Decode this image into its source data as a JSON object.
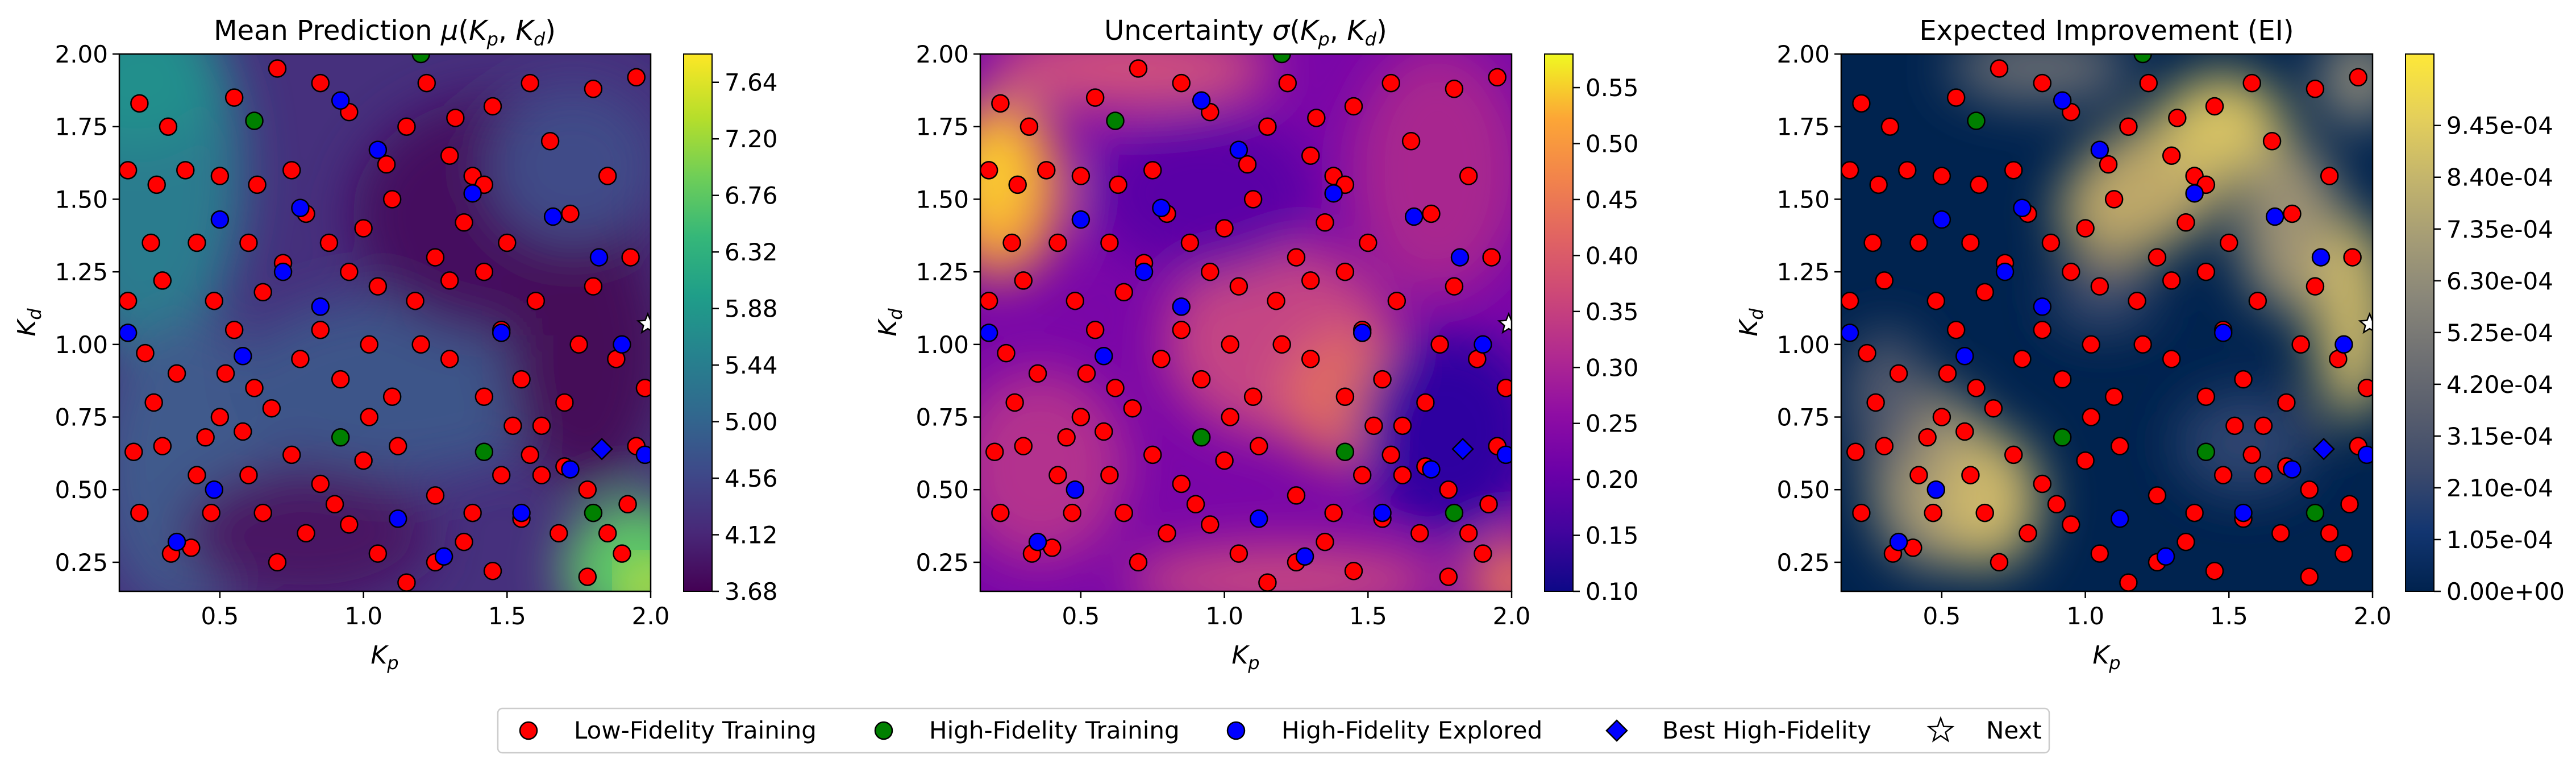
{
  "colors": {
    "low_fidelity": "#ff0000",
    "high_fidelity_training": "#008000",
    "high_fidelity_explored": "#0000ff",
    "best_high_fidelity": "#0000ff",
    "marker_edge": "#000000"
  },
  "legend": {
    "placement": "bottom-center",
    "items": [
      {
        "label": "Low-Fidelity Training",
        "marker": "circle",
        "color": "#ff0000"
      },
      {
        "label": "High-Fidelity Training",
        "marker": "circle",
        "color": "#008000"
      },
      {
        "label": "High-Fidelity Explored",
        "marker": "circle",
        "color": "#0000ff"
      },
      {
        "label": "Best High-Fidelity",
        "marker": "diamond",
        "color": "#0000ff"
      },
      {
        "label": "Next",
        "marker": "star",
        "color": "#ffffff"
      }
    ]
  },
  "chart_data": [
    {
      "type": "heatmap",
      "title": "Mean Prediction μ(K_p, K_d)",
      "title_parts": {
        "main": "Mean Prediction ",
        "mu": "μ",
        "k1": "K",
        "k1sub": "p",
        "k2": "K",
        "k2sub": "d"
      },
      "xlabel": "K_p",
      "ylabel": "K_d",
      "xlim": [
        0.15,
        2.0
      ],
      "ylim": [
        0.15,
        2.0
      ],
      "xticks": [
        0.5,
        1.0,
        1.5,
        2.0
      ],
      "xtick_labels": [
        "0.5",
        "1.0",
        "1.5",
        "2.0"
      ],
      "yticks": [
        0.25,
        0.5,
        0.75,
        1.0,
        1.25,
        1.5,
        1.75,
        2.0
      ],
      "ytick_labels": [
        "0.25",
        "0.50",
        "0.75",
        "1.00",
        "1.25",
        "1.50",
        "1.75",
        "2.00"
      ],
      "colormap": "viridis",
      "colorbar_range": [
        3.68,
        7.86
      ],
      "colorbar_ticks": [
        3.68,
        4.12,
        4.56,
        5.0,
        5.44,
        5.88,
        6.32,
        6.76,
        7.2,
        7.64
      ],
      "colorbar_tick_labels": [
        "3.68",
        "4.12",
        "4.56",
        "5.00",
        "5.44",
        "5.88",
        "6.32",
        "6.76",
        "7.20",
        "7.64"
      ]
    },
    {
      "type": "heatmap",
      "title": "Uncertainty σ(K_p, K_d)",
      "title_parts": {
        "main": "Uncertainty ",
        "mu": "σ",
        "k1": "K",
        "k1sub": "p",
        "k2": "K",
        "k2sub": "d"
      },
      "xlabel": "K_p",
      "ylabel": "K_d",
      "xlim": [
        0.15,
        2.0
      ],
      "ylim": [
        0.15,
        2.0
      ],
      "xticks": [
        0.5,
        1.0,
        1.5,
        2.0
      ],
      "xtick_labels": [
        "0.5",
        "1.0",
        "1.5",
        "2.0"
      ],
      "yticks": [
        0.25,
        0.5,
        0.75,
        1.0,
        1.25,
        1.5,
        1.75,
        2.0
      ],
      "ytick_labels": [
        "0.25",
        "0.50",
        "0.75",
        "1.00",
        "1.25",
        "1.50",
        "1.75",
        "2.00"
      ],
      "colormap": "plasma",
      "colorbar_range": [
        0.1,
        0.58
      ],
      "colorbar_ticks": [
        0.1,
        0.15,
        0.2,
        0.25,
        0.3,
        0.35,
        0.4,
        0.45,
        0.5,
        0.55
      ],
      "colorbar_tick_labels": [
        "0.10",
        "0.15",
        "0.20",
        "0.25",
        "0.30",
        "0.35",
        "0.40",
        "0.45",
        "0.50",
        "0.55"
      ]
    },
    {
      "type": "heatmap",
      "title": "Expected Improvement (EI)",
      "xlabel": "K_p",
      "ylabel": "K_d",
      "xlim": [
        0.15,
        2.0
      ],
      "ylim": [
        0.15,
        2.0
      ],
      "xticks": [
        0.5,
        1.0,
        1.5,
        2.0
      ],
      "xtick_labels": [
        "0.5",
        "1.0",
        "1.5",
        "2.0"
      ],
      "yticks": [
        0.25,
        0.5,
        0.75,
        1.0,
        1.25,
        1.5,
        1.75,
        2.0
      ],
      "ytick_labels": [
        "0.25",
        "0.50",
        "0.75",
        "1.00",
        "1.25",
        "1.50",
        "1.75",
        "2.00"
      ],
      "colormap": "cividis",
      "colorbar_range": [
        0.0,
        0.00109
      ],
      "colorbar_ticks": [
        0.0,
        0.000105,
        0.00021,
        0.000315,
        0.00042,
        0.000525,
        0.00063,
        0.000735,
        0.00084,
        0.000945
      ],
      "colorbar_tick_labels": [
        "0.00e+00",
        "1.05e-04",
        "2.10e-04",
        "3.15e-04",
        "4.20e-04",
        "5.25e-04",
        "6.30e-04",
        "7.35e-04",
        "8.40e-04",
        "9.45e-04"
      ]
    }
  ],
  "scatter_points": {
    "low_fidelity": [
      [
        0.22,
        1.83
      ],
      [
        0.26,
        1.35
      ],
      [
        0.18,
        1.15
      ],
      [
        0.24,
        0.97
      ],
      [
        0.3,
        1.22
      ],
      [
        0.2,
        0.63
      ],
      [
        0.27,
        0.8
      ],
      [
        0.35,
        0.9
      ],
      [
        0.42,
        0.55
      ],
      [
        0.33,
        0.28
      ],
      [
        0.4,
        0.3
      ],
      [
        0.47,
        0.42
      ],
      [
        0.5,
        0.75
      ],
      [
        0.55,
        1.05
      ],
      [
        0.6,
        1.35
      ],
      [
        0.63,
        1.55
      ],
      [
        0.55,
        1.85
      ],
      [
        0.7,
        1.95
      ],
      [
        0.75,
        1.6
      ],
      [
        0.8,
        1.45
      ],
      [
        0.88,
        1.35
      ],
      [
        0.95,
        1.25
      ],
      [
        1.05,
        1.2
      ],
      [
        1.1,
        1.5
      ],
      [
        1.15,
        1.75
      ],
      [
        1.22,
        1.9
      ],
      [
        1.3,
        1.65
      ],
      [
        1.35,
        1.42
      ],
      [
        1.42,
        1.25
      ],
      [
        1.48,
        1.05
      ],
      [
        1.55,
        0.88
      ],
      [
        1.62,
        0.72
      ],
      [
        1.7,
        0.58
      ],
      [
        1.78,
        0.5
      ],
      [
        1.85,
        0.35
      ],
      [
        1.9,
        0.28
      ],
      [
        1.95,
        0.65
      ],
      [
        1.88,
        0.95
      ],
      [
        1.8,
        1.2
      ],
      [
        1.72,
        1.45
      ],
      [
        1.65,
        1.7
      ],
      [
        1.58,
        1.9
      ],
      [
        1.45,
        1.82
      ],
      [
        1.38,
        1.58
      ],
      [
        1.3,
        1.22
      ],
      [
        1.2,
        1.0
      ],
      [
        1.1,
        0.82
      ],
      [
        1.0,
        0.6
      ],
      [
        0.9,
        0.45
      ],
      [
        0.8,
        0.35
      ],
      [
        0.7,
        0.25
      ],
      [
        0.65,
        0.42
      ],
      [
        0.6,
        0.55
      ],
      [
        0.58,
        0.7
      ],
      [
        0.52,
        0.9
      ],
      [
        0.48,
        1.15
      ],
      [
        0.42,
        1.35
      ],
      [
        0.38,
        1.6
      ],
      [
        0.32,
        1.75
      ],
      [
        0.28,
        1.55
      ],
      [
        0.85,
        1.05
      ],
      [
        0.92,
        0.88
      ],
      [
        1.02,
        0.75
      ],
      [
        1.12,
        0.65
      ],
      [
        1.25,
        0.48
      ],
      [
        1.35,
        0.32
      ],
      [
        1.45,
        0.22
      ],
      [
        1.55,
        0.4
      ],
      [
        1.62,
        0.55
      ],
      [
        1.7,
        0.8
      ],
      [
        1.75,
        1.0
      ],
      [
        1.6,
        1.15
      ],
      [
        1.5,
        1.35
      ],
      [
        1.42,
        1.55
      ],
      [
        1.32,
        1.78
      ],
      [
        1.25,
        1.3
      ],
      [
        1.18,
        1.15
      ],
      [
        0.72,
        1.28
      ],
      [
        0.78,
        0.95
      ],
      [
        0.68,
        0.78
      ],
      [
        0.75,
        0.62
      ],
      [
        0.85,
        0.52
      ],
      [
        0.95,
        0.38
      ],
      [
        1.05,
        0.28
      ],
      [
        1.15,
        0.18
      ],
      [
        1.25,
        0.25
      ],
      [
        1.38,
        0.42
      ],
      [
        1.48,
        0.55
      ],
      [
        1.58,
        0.62
      ],
      [
        1.68,
        0.35
      ],
      [
        1.78,
        0.2
      ],
      [
        1.92,
        0.45
      ],
      [
        1.98,
        0.85
      ],
      [
        1.93,
        1.3
      ],
      [
        1.85,
        1.58
      ],
      [
        1.95,
        1.92
      ],
      [
        1.8,
        1.88
      ],
      [
        0.18,
        1.6
      ],
      [
        0.22,
        0.42
      ],
      [
        0.3,
        0.65
      ],
      [
        0.45,
        0.68
      ],
      [
        0.5,
        1.58
      ],
      [
        0.65,
        1.18
      ],
      [
        1.0,
        1.4
      ],
      [
        1.08,
        1.62
      ],
      [
        0.95,
        1.8
      ],
      [
        0.85,
        1.9
      ],
      [
        0.62,
        0.85
      ],
      [
        1.52,
        0.72
      ],
      [
        1.3,
        0.95
      ],
      [
        1.42,
        0.82
      ],
      [
        1.02,
        1.0
      ]
    ],
    "high_fidelity_training": [
      [
        0.62,
        1.77
      ],
      [
        1.2,
        2.0
      ],
      [
        0.92,
        0.68
      ],
      [
        1.42,
        0.63
      ],
      [
        1.8,
        0.42
      ]
    ],
    "high_fidelity_explored": [
      [
        0.35,
        0.32
      ],
      [
        0.48,
        0.5
      ],
      [
        0.58,
        0.96
      ],
      [
        0.5,
        1.43
      ],
      [
        0.72,
        1.25
      ],
      [
        0.92,
        1.84
      ],
      [
        0.78,
        1.47
      ],
      [
        1.05,
        1.67
      ],
      [
        1.12,
        0.4
      ],
      [
        1.28,
        0.27
      ],
      [
        1.48,
        1.04
      ],
      [
        1.66,
        1.44
      ],
      [
        1.82,
        1.3
      ],
      [
        1.9,
        1.0
      ],
      [
        1.72,
        0.57
      ],
      [
        1.55,
        0.42
      ],
      [
        1.98,
        0.62
      ],
      [
        0.85,
        1.13
      ],
      [
        0.18,
        1.04
      ],
      [
        1.38,
        1.52
      ]
    ],
    "best_high_fidelity": [
      [
        1.83,
        0.64
      ]
    ],
    "next": [
      [
        1.99,
        1.07
      ]
    ]
  }
}
